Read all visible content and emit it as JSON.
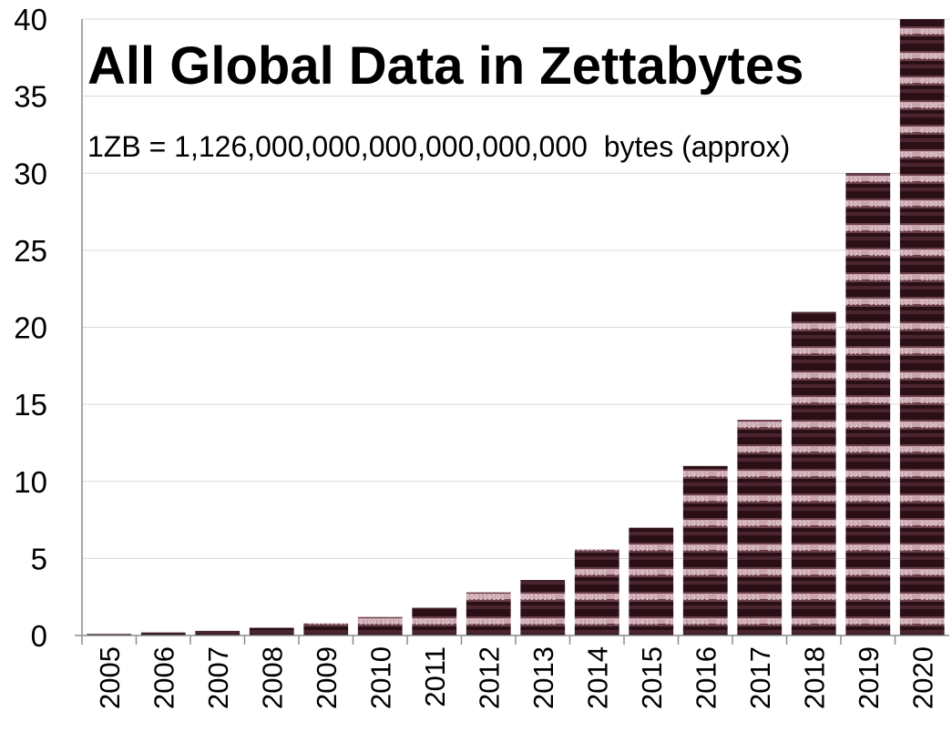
{
  "colors": {
    "bar_dark": "#2a1016",
    "bar_mid": "#6b3f4a",
    "bar_light": "#c9a3ad",
    "bar_highlight": "#e8d5da",
    "grid": "#d9d9d9",
    "axis": "#8c8c8c"
  },
  "chart_data": {
    "type": "bar",
    "title": "All Global Data in Zettabytes",
    "subtitle": "1ZB = 1,126,000,000,000,000,000,000  bytes (approx)",
    "xlabel": "",
    "ylabel": "",
    "ylim": [
      0,
      40
    ],
    "yticks": [
      0,
      5,
      10,
      15,
      20,
      25,
      30,
      35,
      40
    ],
    "grid": true,
    "legend": "none",
    "categories": [
      "2005",
      "2006",
      "2007",
      "2008",
      "2009",
      "2010",
      "2011",
      "2012",
      "2013",
      "2014",
      "2015",
      "2016",
      "2017",
      "2018",
      "2019",
      "2020"
    ],
    "values": [
      0.1,
      0.2,
      0.3,
      0.5,
      0.8,
      1.2,
      1.8,
      2.8,
      3.6,
      5.6,
      7.0,
      11.0,
      14.0,
      21.0,
      30.0,
      40.0
    ]
  }
}
